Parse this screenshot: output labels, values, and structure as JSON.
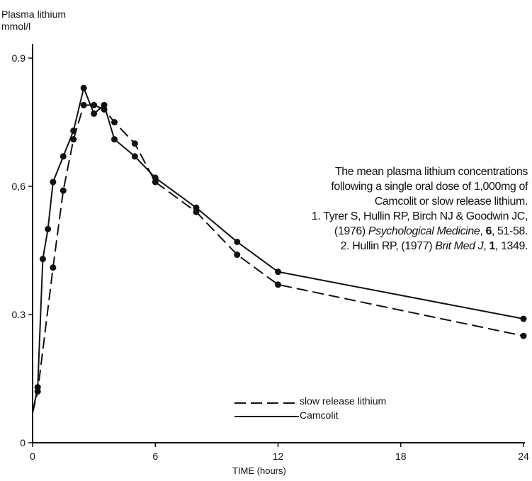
{
  "chart_data": {
    "type": "line",
    "ylabel_line1": "Plasma lithium",
    "ylabel_line2": "mmol/l",
    "xlabel": "TIME (hours)",
    "xlim": [
      0,
      24
    ],
    "ylim": [
      0,
      0.95
    ],
    "x_ticks": [
      0,
      6,
      12,
      18,
      24
    ],
    "x_tick_labels": [
      "0",
      "6",
      "12",
      "18",
      "24"
    ],
    "y_ticks": [
      0,
      0.3,
      0.6,
      0.9
    ],
    "y_tick_labels": [
      "0",
      "0.3",
      "0,6",
      "0.9"
    ],
    "grid": false,
    "legend_position": "bottom-center",
    "series": [
      {
        "name": "slow release lithium",
        "style": "dashed",
        "x": [
          0,
          0.25,
          1,
          1.5,
          2,
          2.5,
          3,
          3.5,
          4,
          5,
          6,
          8,
          10,
          12,
          24
        ],
        "y": [
          0.07,
          0.12,
          0.41,
          0.59,
          0.71,
          0.79,
          0.79,
          0.78,
          0.75,
          0.7,
          0.61,
          0.54,
          0.44,
          0.37,
          0.25
        ]
      },
      {
        "name": "Camcolit",
        "style": "solid",
        "x": [
          0,
          0.25,
          0.5,
          0.75,
          1,
          1.5,
          2,
          2.5,
          3,
          3.5,
          4,
          5,
          6,
          8,
          10,
          12,
          24
        ],
        "y": [
          0.07,
          0.13,
          0.43,
          0.5,
          0.61,
          0.67,
          0.73,
          0.83,
          0.77,
          0.79,
          0.71,
          0.67,
          0.62,
          0.55,
          0.47,
          0.4,
          0.29
        ]
      }
    ]
  },
  "citation": {
    "lines": [
      "The mean plasma lithium concentrations",
      "following a single oral dose of 1,000mg of",
      "Camcolit or slow release lithium.",
      "1. Tyrer S, Hullin RP, Birch NJ & Goodwin JC,"
    ],
    "line5_a": "(1976) ",
    "line5_journal": "Psychological Medicine",
    "line5_b": ", ",
    "line5_volume": "6",
    "line5_c": ", 51-58.",
    "line6_a": "2. Hullin RP, (1977) ",
    "line6_journal": "Brit Med J",
    "line6_b": ", ",
    "line6_volume": "1",
    "line6_c": ", 1349."
  },
  "colors": {
    "ink": "#111111",
    "background": "#ffffff"
  }
}
